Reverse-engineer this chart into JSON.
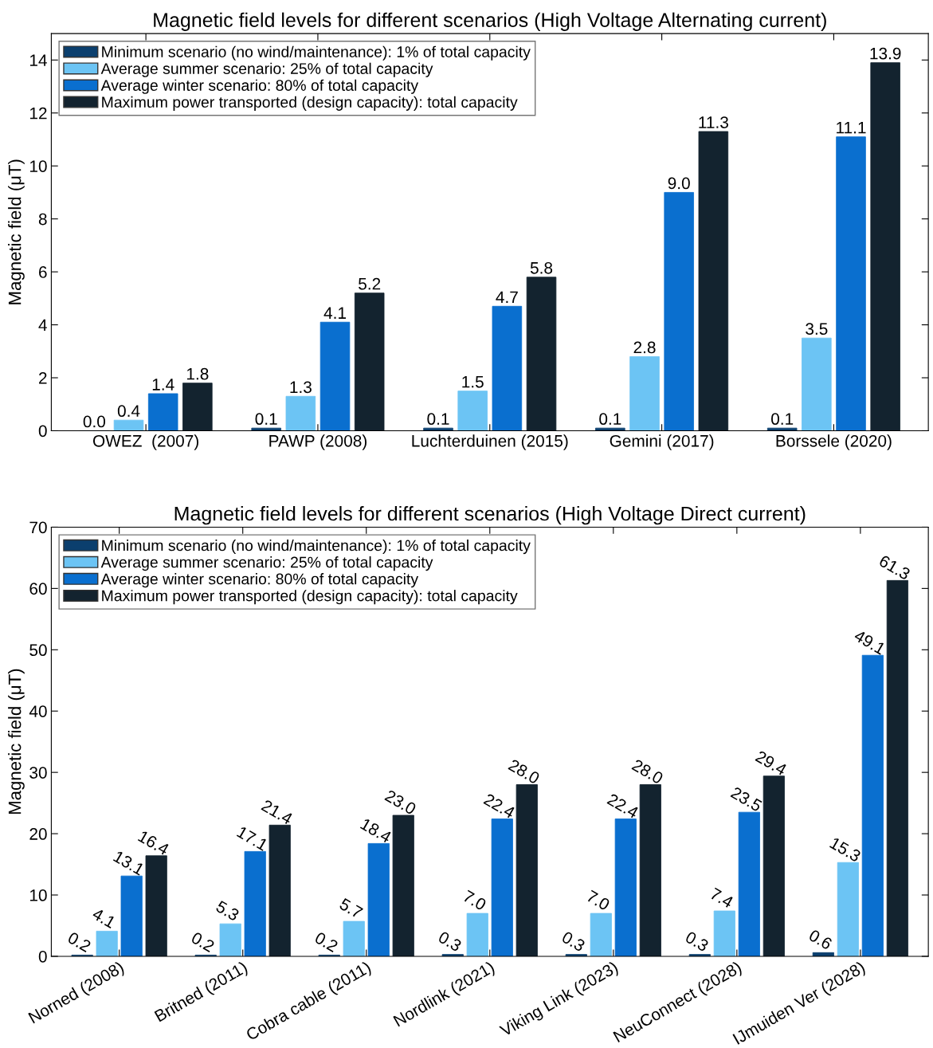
{
  "chart_data": [
    {
      "type": "bar",
      "title": "Magnetic field levels for different scenarios (High Voltage Alternating current)",
      "ylabel": "Magnetic field (μT)",
      "categories": [
        "OWEZ  (2007)",
        "PAWP (2008)",
        "Luchterduinen (2015)",
        "Gemini (2017)",
        "Borssele (2020)"
      ],
      "ylim": [
        0,
        15
      ],
      "yticks": [
        0,
        2,
        4,
        6,
        8,
        10,
        12,
        14
      ],
      "grid": false,
      "legend": "top left",
      "series": [
        {
          "name": "Minimum scenario (no wind/maintenance): 1% of total capacity",
          "color": "#0b3f6e",
          "values": [
            0.0,
            0.1,
            0.1,
            0.1,
            0.1
          ],
          "value_labels": [
            "0.0",
            "0.1",
            "0.1",
            "0.1",
            "0.1"
          ]
        },
        {
          "name": "Average summer scenario: 25% of total capacity",
          "color": "#6cc4f4",
          "values": [
            0.4,
            1.3,
            1.5,
            2.8,
            3.5
          ],
          "value_labels": [
            "0.4",
            "1.3",
            "1.5",
            "2.8",
            "3.5"
          ]
        },
        {
          "name": "Average winter scenario: 80% of total capacity",
          "color": "#0a6fcf",
          "values": [
            1.4,
            4.1,
            4.7,
            9.0,
            11.1
          ],
          "value_labels": [
            "1.4",
            "4.1",
            "4.7",
            "9.0",
            "11.1"
          ]
        },
        {
          "name": "Maximum power transported (design capacity): total capacity",
          "color": "#13232f",
          "values": [
            1.8,
            5.2,
            5.8,
            11.3,
            13.9
          ],
          "value_labels": [
            "1.8",
            "5.2",
            "5.8",
            "11.3",
            "13.9"
          ]
        }
      ]
    },
    {
      "type": "bar",
      "title": "Magnetic field levels for different scenarios (High Voltage Direct current)",
      "ylabel": "Magnetic field (μT)",
      "categories": [
        "Norned (2008)",
        "Britned (2011)",
        "Cobra cable (2011)",
        "Nordlink (2021)",
        "Viking Link (2023)",
        "NeuConnect (2028)",
        "IJmuiden Ver (2028)"
      ],
      "ylim": [
        0,
        70
      ],
      "yticks": [
        0,
        10,
        20,
        30,
        40,
        50,
        60,
        70
      ],
      "grid": false,
      "legend": "top left",
      "series": [
        {
          "name": "Minimum scenario (no wind/maintenance): 1% of total capacity",
          "color": "#0b3f6e",
          "values": [
            0.2,
            0.2,
            0.2,
            0.3,
            0.3,
            0.3,
            0.6
          ],
          "value_labels": [
            "0.2",
            "0.2",
            "0.2",
            "0.3",
            "0.3",
            "0.3",
            "0.6"
          ]
        },
        {
          "name": "Average summer scenario: 25% of total capacity",
          "color": "#6cc4f4",
          "values": [
            4.1,
            5.3,
            5.7,
            7.0,
            7.0,
            7.4,
            15.3
          ],
          "value_labels": [
            "4.1",
            "5.3",
            "5.7",
            "7.0",
            "7.0",
            "7.4",
            "15.3"
          ]
        },
        {
          "name": "Average winter scenario: 80% of total capacity",
          "color": "#0a6fcf",
          "values": [
            13.1,
            17.1,
            18.4,
            22.4,
            22.4,
            23.5,
            49.1
          ],
          "value_labels": [
            "13.1",
            "17.1",
            "18.4",
            "22.4",
            "22.4",
            "23.5",
            "49.1"
          ]
        },
        {
          "name": "Maximum power transported (design capacity): total capacity",
          "color": "#13232f",
          "values": [
            16.4,
            21.4,
            23.0,
            28.0,
            28.0,
            29.4,
            61.3
          ],
          "value_labels": [
            "16.4",
            "21.4",
            "23.0",
            "28.0",
            "28.0",
            "29.4",
            "61.3"
          ]
        }
      ]
    }
  ]
}
